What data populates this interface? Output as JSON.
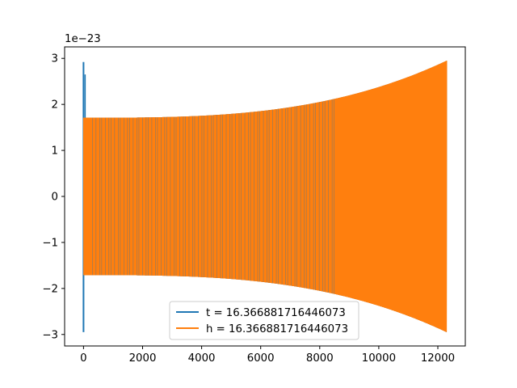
{
  "chart_data": {
    "type": "line",
    "title": "",
    "xlabel": "",
    "ylabel": "",
    "y_offset_label": "1e−23",
    "xlim": [
      -640,
      12930
    ],
    "ylim": [
      -3.25,
      3.25
    ],
    "grid": false,
    "legend_placement": "lower center",
    "x_ticks": [
      {
        "value": 0,
        "label": "0"
      },
      {
        "value": 2000,
        "label": "2000"
      },
      {
        "value": 4000,
        "label": "4000"
      },
      {
        "value": 6000,
        "label": "6000"
      },
      {
        "value": 8000,
        "label": "8000"
      },
      {
        "value": 10000,
        "label": "10000"
      },
      {
        "value": 12000,
        "label": "12000"
      }
    ],
    "y_ticks": [
      {
        "value": -3,
        "label": "−3"
      },
      {
        "value": -2,
        "label": "−2"
      },
      {
        "value": -1,
        "label": "−1"
      },
      {
        "value": 0,
        "label": "0"
      },
      {
        "value": 1,
        "label": "1"
      },
      {
        "value": 2,
        "label": "2"
      },
      {
        "value": 3,
        "label": "3"
      }
    ],
    "series": [
      {
        "name": "t = 16.366881716446073",
        "color": "#1f77b4",
        "envelope": {
          "x": [
            0,
            12300
          ],
          "spike_at_x": 0,
          "spike_range": [
            -2.95,
            2.92
          ],
          "start_amplitude": 1.71,
          "end_amplitude": 2.95
        }
      },
      {
        "name": "h = 16.366881716446073",
        "color": "#ff7f0e",
        "envelope": {
          "x": [
            0,
            12300
          ],
          "start_amplitude": 1.71,
          "end_amplitude": 2.95
        }
      }
    ]
  }
}
